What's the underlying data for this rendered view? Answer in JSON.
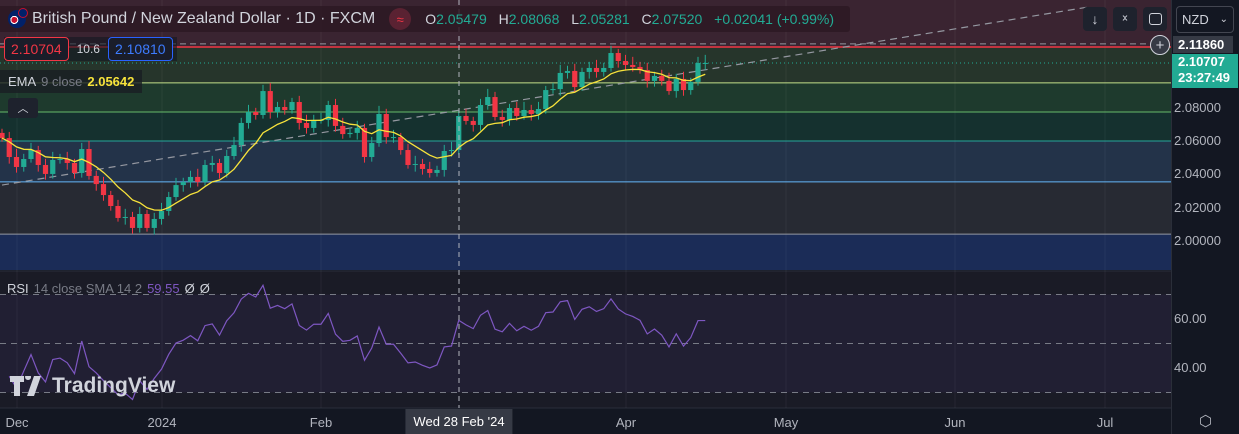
{
  "header": {
    "title": "British Pound / New Zealand Dollar · 1D · FXCM",
    "badge_icon": "approx-equal-icon",
    "ohlc": {
      "o_label": "O",
      "o": "2.05479",
      "h_label": "H",
      "h": "2.08068",
      "l_label": "L",
      "l": "2.05281",
      "c_label": "C",
      "c": "2.07520",
      "change": "+0.02041 (+0.99%)"
    }
  },
  "quote": {
    "bid": "2.10704",
    "spread": "10.6",
    "ask": "2.10810"
  },
  "ema_legend": {
    "name": "EMA",
    "params": "9 close",
    "value": "2.05642"
  },
  "rsi_legend": {
    "name": "RSI",
    "params": "14 close SMA 14 2",
    "value": "59.55",
    "extra1": "Ø",
    "extra2": "Ø"
  },
  "logo": "TradingView",
  "toolbar": {
    "buttons": [
      "arrow-down-icon",
      "collapse-icon",
      "fullscreen-icon"
    ],
    "currency": "NZD"
  },
  "price_axis": {
    "high_label": "2.11860",
    "last_price": "2.10707",
    "countdown": "23:27:49",
    "ticks": [
      "2.08000",
      "2.06000",
      "2.04000",
      "2.02000",
      "2.00000"
    ],
    "rsi_ticks": [
      "60.00",
      "40.00"
    ]
  },
  "time_axis": {
    "labels": [
      "Dec",
      "2024",
      "Feb",
      "Apr",
      "May",
      "Jun",
      "Jul"
    ],
    "crosshair_label": "Wed 28 Feb '24"
  },
  "colors": {
    "up": "#22ab94",
    "down": "#f23645",
    "ema": "#f7e33b",
    "rsi": "#7e57c2",
    "accent": "#22ab94"
  },
  "chart_data": {
    "type": "candlestick",
    "symbol": "GBPNZD",
    "interval": "1D",
    "closes": [
      2.0619,
      2.0505,
      2.0445,
      2.0493,
      2.0547,
      2.0457,
      2.0403,
      2.0487,
      2.0493,
      2.0469,
      2.0409,
      2.0553,
      2.0391,
      2.0342,
      2.0276,
      2.021,
      2.0138,
      2.0144,
      2.0078,
      2.0162,
      2.0078,
      2.0132,
      2.018,
      2.0264,
      2.0336,
      2.0355,
      2.0385,
      2.0355,
      2.0457,
      2.0469,
      2.0409,
      2.0511,
      2.0577,
      2.071,
      2.0776,
      2.0758,
      2.0902,
      2.0776,
      2.0806,
      2.0788,
      2.0836,
      2.071,
      2.068,
      2.0728,
      2.0728,
      2.0818,
      2.0692,
      2.0643,
      2.065,
      2.068,
      2.0505,
      2.0589,
      2.0764,
      2.0625,
      2.0625,
      2.0547,
      2.0457,
      2.0463,
      2.0433,
      2.0409,
      2.0427,
      2.0541,
      2.0547,
      2.0752,
      2.0722,
      2.0698,
      2.0818,
      2.0866,
      2.0746,
      2.0728,
      2.08,
      2.0752,
      2.0788,
      2.0764,
      2.0794,
      2.0908,
      2.0914,
      2.1011,
      2.1023,
      2.0926,
      2.1017,
      2.1041,
      2.1017,
      2.1041,
      2.1131,
      2.1083,
      2.1059,
      2.1047,
      2.1029,
      2.0963,
      2.0993,
      2.0963,
      2.0902,
      2.0975,
      2.0908,
      2.0957,
      2.1071,
      2.1071
    ],
    "indicators": [
      {
        "name": "EMA",
        "period": 9
      },
      {
        "name": "RSI",
        "period": 14
      }
    ],
    "levels": [
      {
        "price": 2.1167,
        "color": "#f23645"
      },
      {
        "price": 2.0951,
        "color": "#c2e08a"
      },
      {
        "price": 2.0776,
        "color": "#66bb6a"
      },
      {
        "price": 2.0601,
        "color": "#26a69a"
      },
      {
        "price": 2.0355,
        "color": "#64b5f6"
      },
      {
        "price": 2.0041,
        "color": "#9598a1"
      }
    ],
    "bands": [
      "#3a2431",
      "#26352b",
      "#1e3a2d",
      "#15312f",
      "#233349",
      "#272a33",
      "#1b2c57"
    ],
    "trendline": {
      "from": [
        0,
        2.0336
      ],
      "to": [
        150,
        2.1409
      ]
    },
    "ylim": [
      1.99,
      2.12
    ],
    "rsi_ylim": [
      23,
      80
    ],
    "rsi_levels": [
      70,
      50,
      30
    ]
  }
}
